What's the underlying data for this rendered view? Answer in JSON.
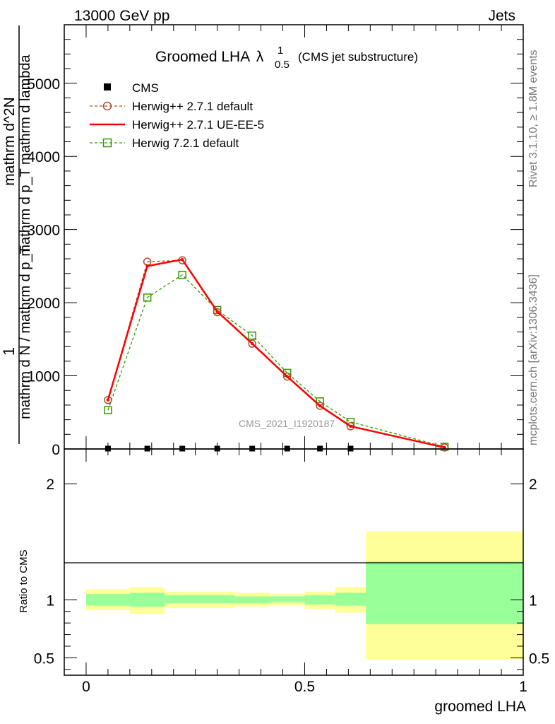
{
  "header": {
    "left": "13000 GeV pp",
    "right": "Jets"
  },
  "title": {
    "main": "Groomed LHA",
    "lambda": "λ",
    "sup": "1",
    "sub": "0.5",
    "note": "(CMS jet substructure)"
  },
  "side_text": {
    "rivet": "Rivet 3.1.10, ≥ 1.8M events",
    "mcplots": "mcplots.cern.ch [arXiv:1306.3436]"
  },
  "watermark": "CMS_2021_I1920187",
  "ylabel_main": {
    "one": "1",
    "denominator": "mathrm d N / mathrm d p_T",
    "numerator": "mathrm d^2N",
    "numerator2": "mathrm d p_T mathrm d lambda"
  },
  "legend": {
    "cms": "CMS",
    "h27_default": "Herwig++ 2.7.1 default",
    "h27_ue": "Herwig++ 2.7.1 UE-EE-5",
    "h72_default": "Herwig 7.2.1 default"
  },
  "colors": {
    "cms": "#000000",
    "h27_default": "#a0522d",
    "h27_ue": "#ff0000",
    "h72_default": "#339900",
    "band_inner": "#99ff99",
    "band_outer": "#ffff99"
  },
  "chart_data": [
    {
      "type": "line",
      "panel": "main",
      "xlabel": "groomed LHA",
      "xlim": [
        -0.05,
        1.0
      ],
      "ylim": [
        0,
        5800
      ],
      "y_ticks": [
        0,
        1000,
        2000,
        3000,
        4000,
        5000
      ],
      "y_tick_labels": [
        "0",
        "1000",
        "2000",
        "3000",
        "4000",
        "5000"
      ],
      "x": [
        0.05,
        0.14,
        0.22,
        0.3,
        0.38,
        0.46,
        0.535,
        0.605,
        0.82
      ],
      "series": [
        {
          "name": "CMS",
          "style": "marker-square",
          "values": [
            5,
            5,
            5,
            5,
            5,
            5,
            5,
            5,
            null
          ]
        },
        {
          "name": "Herwig++ 2.7.1 default",
          "style": "dashed-circle",
          "values": [
            670,
            2560,
            2580,
            1870,
            1440,
            990,
            590,
            310,
            20
          ]
        },
        {
          "name": "Herwig++ 2.7.1 UE-EE-5",
          "style": "solid",
          "values": [
            670,
            2500,
            2590,
            1880,
            1440,
            990,
            590,
            310,
            20
          ]
        },
        {
          "name": "Herwig 7.2.1 default",
          "style": "dashed-square",
          "values": [
            530,
            2070,
            2380,
            1900,
            1550,
            1040,
            650,
            370,
            30
          ]
        }
      ]
    },
    {
      "type": "area",
      "panel": "ratio",
      "ylabel": "Ratio to CMS",
      "xlim": [
        -0.05,
        1.0
      ],
      "ylim": [
        0.35,
        2.3
      ],
      "y_ticks": [
        0.5,
        1,
        2
      ],
      "y_tick_labels": [
        "0.5",
        "1",
        "2"
      ],
      "x_ticks": [
        0,
        0.5,
        1
      ],
      "x_tick_labels": [
        "0",
        "0.5",
        "1"
      ],
      "bins": [
        {
          "lo": 0.0,
          "hi": 0.1,
          "inner": [
            0.95,
            1.05
          ],
          "outer": [
            0.91,
            1.09
          ]
        },
        {
          "lo": 0.1,
          "hi": 0.18,
          "inner": [
            0.94,
            1.06
          ],
          "outer": [
            0.88,
            1.11
          ]
        },
        {
          "lo": 0.18,
          "hi": 0.34,
          "inner": [
            0.97,
            1.04
          ],
          "outer": [
            0.93,
            1.07
          ]
        },
        {
          "lo": 0.34,
          "hi": 0.42,
          "inner": [
            0.97,
            1.03
          ],
          "outer": [
            0.94,
            1.06
          ]
        },
        {
          "lo": 0.42,
          "hi": 0.5,
          "inner": [
            0.98,
            1.03
          ],
          "outer": [
            0.95,
            1.05
          ]
        },
        {
          "lo": 0.5,
          "hi": 0.57,
          "inner": [
            0.96,
            1.04
          ],
          "outer": [
            0.92,
            1.07
          ]
        },
        {
          "lo": 0.57,
          "hi": 0.64,
          "inner": [
            0.95,
            1.06
          ],
          "outer": [
            0.89,
            1.11
          ]
        },
        {
          "lo": 0.64,
          "hi": 1.0,
          "inner": [
            0.79,
            1.33
          ],
          "outer": [
            0.49,
            1.59
          ]
        }
      ]
    }
  ]
}
